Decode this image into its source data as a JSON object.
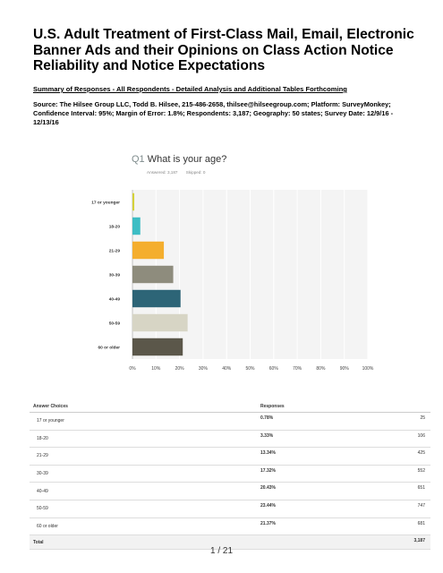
{
  "document": {
    "title": "U.S. Adult Treatment of First-Class Mail, Email, Electronic Banner Ads and their Opinions on Class Action Notice Reliability and Notice Expectations",
    "subtitle": "Summary of Responses - All Respondents - Detailed Analysis and Additional Tables Forthcoming",
    "source": "Source: The Hilsee Group LLC, Todd B. Hilsee, 215-486-2658, thilsee@hilseegroup.com; Platform: SurveyMonkey; Confidence Interval: 95%; Margin of Error: 1.8%; Respondents: 3,187; Geography: 50 states; Survey Date: 12/9/16 - 12/13/16",
    "page_number": "1 / 21"
  },
  "question": {
    "number": "Q1",
    "text": "What is your age?",
    "answered": "Answered: 3,187",
    "skipped": "Skipped: 0"
  },
  "chart_data": {
    "type": "bar",
    "orientation": "horizontal",
    "categories": [
      "17 or younger",
      "18-20",
      "21-29",
      "30-39",
      "40-49",
      "50-59",
      "60 or older"
    ],
    "values": [
      0.78,
      3.33,
      13.34,
      17.32,
      20.43,
      23.44,
      21.37
    ],
    "colors": [
      "#d4d13a",
      "#3dbdc4",
      "#f4ae2e",
      "#8e8c7d",
      "#2d6577",
      "#d7d5c5",
      "#5b574a"
    ],
    "xlim": [
      0,
      100
    ],
    "xticks": [
      "0%",
      "10%",
      "20%",
      "30%",
      "40%",
      "50%",
      "60%",
      "70%",
      "80%",
      "90%",
      "100%"
    ],
    "grid": true
  },
  "table": {
    "headers": [
      "Answer Choices",
      "Responses"
    ],
    "rows": [
      {
        "choice": "17 or younger",
        "percent": "0.78%",
        "count": "25"
      },
      {
        "choice": "18-20",
        "percent": "3.33%",
        "count": "106"
      },
      {
        "choice": "21-29",
        "percent": "13.34%",
        "count": "425"
      },
      {
        "choice": "30-39",
        "percent": "17.32%",
        "count": "552"
      },
      {
        "choice": "40-49",
        "percent": "20.43%",
        "count": "651"
      },
      {
        "choice": "50-59",
        "percent": "23.44%",
        "count": "747"
      },
      {
        "choice": "60 or older",
        "percent": "21.37%",
        "count": "681"
      }
    ],
    "total_label": "Total",
    "total_count": "3,187"
  }
}
